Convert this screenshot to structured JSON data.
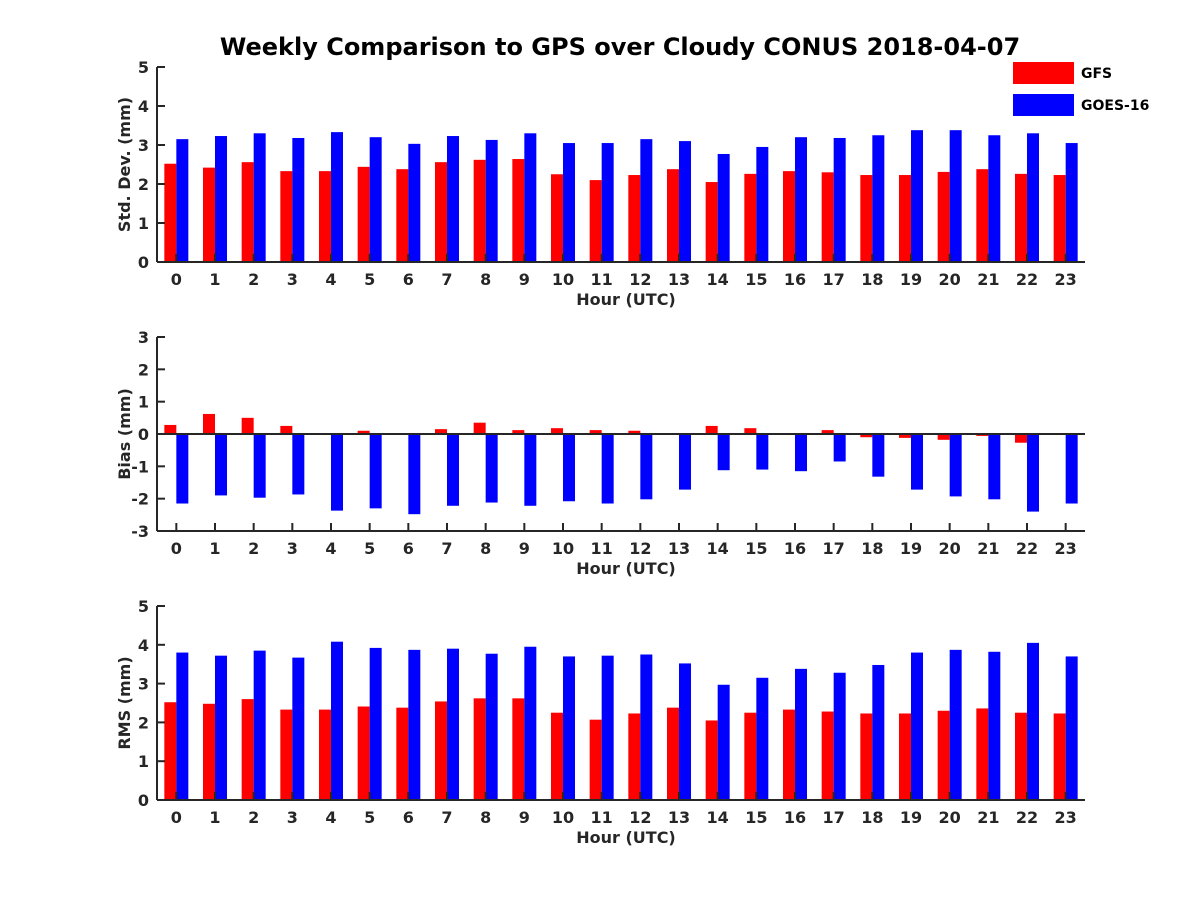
{
  "title": "Weekly Comparison to GPS over Cloudy CONUS 2018-04-07",
  "colors": {
    "GFS": "#ff0000",
    "GOES-16": "#0000ff",
    "axis": "#262626"
  },
  "legend": {
    "placement": "top-right",
    "entries": [
      "GFS",
      "GOES-16"
    ]
  },
  "chart_data": [
    {
      "type": "bar",
      "xlabel": "Hour (UTC)",
      "ylabel": "Std. Dev. (mm)",
      "ylim": [
        0,
        5
      ],
      "yticks": [
        0,
        1,
        2,
        3,
        4,
        5
      ],
      "categories": [
        "0",
        "1",
        "2",
        "3",
        "4",
        "5",
        "6",
        "7",
        "8",
        "9",
        "10",
        "11",
        "12",
        "13",
        "14",
        "15",
        "16",
        "17",
        "18",
        "19",
        "20",
        "21",
        "22",
        "23"
      ],
      "series": [
        {
          "name": "GFS",
          "values": [
            2.52,
            2.42,
            2.56,
            2.33,
            2.33,
            2.44,
            2.38,
            2.56,
            2.62,
            2.64,
            2.25,
            2.1,
            2.23,
            2.38,
            2.05,
            2.26,
            2.33,
            2.3,
            2.23,
            2.23,
            2.31,
            2.38,
            2.26,
            2.23
          ]
        },
        {
          "name": "GOES-16",
          "values": [
            3.15,
            3.23,
            3.3,
            3.18,
            3.33,
            3.2,
            3.03,
            3.23,
            3.13,
            3.3,
            3.05,
            3.05,
            3.15,
            3.1,
            2.77,
            2.95,
            3.2,
            3.18,
            3.25,
            3.38,
            3.38,
            3.25,
            3.3,
            3.05
          ]
        }
      ]
    },
    {
      "type": "bar",
      "xlabel": "Hour (UTC)",
      "ylabel": "Bias (mm)",
      "ylim": [
        -3,
        3
      ],
      "yticks": [
        -3,
        -2,
        -1,
        0,
        1,
        2,
        3
      ],
      "categories": [
        "0",
        "1",
        "2",
        "3",
        "4",
        "5",
        "6",
        "7",
        "8",
        "9",
        "10",
        "11",
        "12",
        "13",
        "14",
        "15",
        "16",
        "17",
        "18",
        "19",
        "20",
        "21",
        "22",
        "23"
      ],
      "series": [
        {
          "name": "GFS",
          "values": [
            0.28,
            0.62,
            0.5,
            0.25,
            0.0,
            0.1,
            0.0,
            0.15,
            0.35,
            0.12,
            0.18,
            0.12,
            0.1,
            0.03,
            0.25,
            0.18,
            0.03,
            0.12,
            -0.1,
            -0.12,
            -0.18,
            -0.06,
            -0.27,
            0.0
          ]
        },
        {
          "name": "GOES-16",
          "values": [
            -2.15,
            -1.9,
            -1.97,
            -1.87,
            -2.37,
            -2.3,
            -2.48,
            -2.22,
            -2.12,
            -2.22,
            -2.08,
            -2.15,
            -2.02,
            -1.72,
            -1.12,
            -1.1,
            -1.15,
            -0.85,
            -1.32,
            -1.72,
            -1.93,
            -2.02,
            -2.4,
            -2.15
          ]
        }
      ]
    },
    {
      "type": "bar",
      "xlabel": "Hour (UTC)",
      "ylabel": "RMS (mm)",
      "ylim": [
        0,
        5
      ],
      "yticks": [
        0,
        1,
        2,
        3,
        4,
        5
      ],
      "categories": [
        "0",
        "1",
        "2",
        "3",
        "4",
        "5",
        "6",
        "7",
        "8",
        "9",
        "10",
        "11",
        "12",
        "13",
        "14",
        "15",
        "16",
        "17",
        "18",
        "19",
        "20",
        "21",
        "22",
        "23"
      ],
      "series": [
        {
          "name": "GFS",
          "values": [
            2.52,
            2.48,
            2.6,
            2.33,
            2.33,
            2.41,
            2.38,
            2.54,
            2.62,
            2.62,
            2.25,
            2.07,
            2.23,
            2.38,
            2.05,
            2.25,
            2.33,
            2.28,
            2.23,
            2.23,
            2.3,
            2.36,
            2.25,
            2.23
          ]
        },
        {
          "name": "GOES-16",
          "values": [
            3.8,
            3.72,
            3.85,
            3.67,
            4.08,
            3.92,
            3.87,
            3.9,
            3.77,
            3.95,
            3.7,
            3.72,
            3.75,
            3.52,
            2.97,
            3.15,
            3.38,
            3.28,
            3.48,
            3.8,
            3.87,
            3.82,
            4.05,
            3.7
          ]
        }
      ]
    }
  ]
}
